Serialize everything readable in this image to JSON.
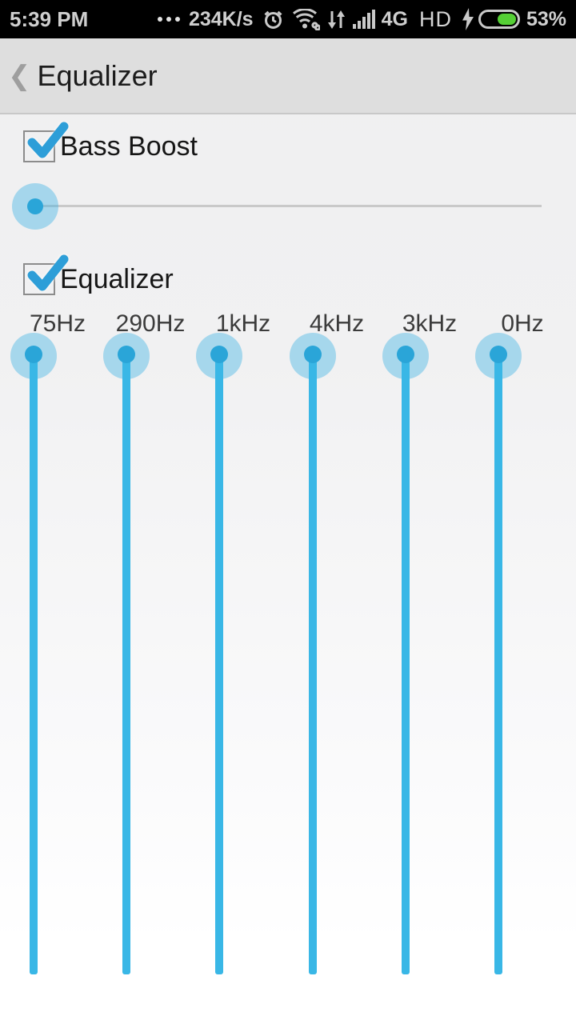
{
  "status_bar": {
    "time": "5:39 PM",
    "network_speed": "234K/s",
    "network_type": "4G",
    "hd_label": "HD",
    "battery_percent_label": "53%",
    "battery_level": 53,
    "icons": [
      "ellipsis-icon",
      "alarm-icon",
      "wifi-icon",
      "data-arrows-icon",
      "signal-icon",
      "charging-bolt-icon",
      "battery-icon"
    ]
  },
  "header": {
    "back_icon": "❮",
    "title": "Equalizer"
  },
  "bass_boost": {
    "label": "Bass Boost",
    "checked": true,
    "slider_value": 0
  },
  "equalizer_section": {
    "label": "Equalizer",
    "checked": true
  },
  "eq_bands": [
    {
      "label": "75Hz",
      "value": 100
    },
    {
      "label": "290Hz",
      "value": 100
    },
    {
      "label": "1kHz",
      "value": 100
    },
    {
      "label": "4kHz",
      "value": 100
    },
    {
      "label": "3kHz",
      "value": 100
    },
    {
      "label": "0Hz",
      "value": 100
    }
  ],
  "colors": {
    "accent_blue": "#39b7e6",
    "thumb_dot": "#2aa5d8",
    "thumb_halo": "rgba(61,178,229,0.42)",
    "checkbox_check": "#2d9ed8",
    "battery_green": "#55cf35",
    "status_bar_bg": "#000000",
    "header_bg": "#dedede"
  }
}
